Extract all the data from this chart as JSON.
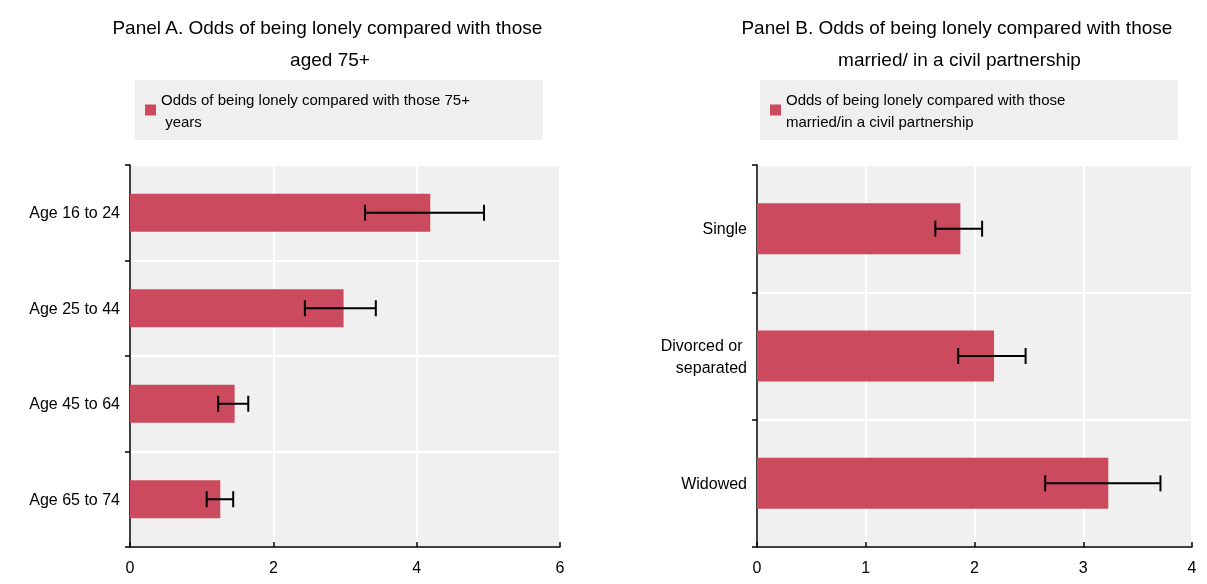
{
  "chart_data": [
    {
      "type": "bar",
      "orientation": "horizontal",
      "title": "Panel A. Odds of being lonely compared with those aged 75+",
      "categories": [
        "Age 16 to 24",
        "Age 25 to 44",
        "Age 45 to 64",
        "Age 65 to 74"
      ],
      "series": [
        {
          "name": "Odds of being lonely compared with those 75+ years",
          "color": "#cc4a5e",
          "values": [
            4.19,
            2.98,
            1.46,
            1.26
          ],
          "errors": [
            [
              3.28,
              4.94
            ],
            [
              2.44,
              3.43
            ],
            [
              1.23,
              1.65
            ],
            [
              1.07,
              1.44
            ]
          ]
        }
      ],
      "xlim": [
        0,
        6
      ],
      "xticks": [
        0,
        2,
        4,
        6
      ],
      "grid": true,
      "legend": "top"
    },
    {
      "type": "bar",
      "orientation": "horizontal",
      "title": "Panel B. Odds of being lonely compared with those married/ in a civil partnership",
      "categories": [
        "Single",
        "Divorced or separated",
        "Widowed"
      ],
      "series": [
        {
          "name": "Odds of being lonely compared with those married/in a civil partnership",
          "color": "#cc4a5e",
          "values": [
            1.87,
            2.18,
            3.23
          ],
          "errors": [
            [
              1.64,
              2.07
            ],
            [
              1.85,
              2.47
            ],
            [
              2.65,
              3.71
            ]
          ]
        }
      ],
      "xlim": [
        0,
        4
      ],
      "xticks": [
        0,
        1,
        2,
        3,
        4
      ],
      "grid": true,
      "legend": "top"
    }
  ]
}
